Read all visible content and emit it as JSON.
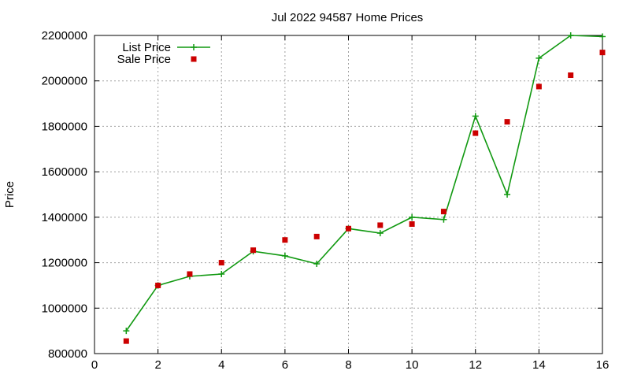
{
  "chart_data": {
    "type": "line",
    "title": "Jul 2022 94587 Home Prices",
    "xlabel": "",
    "ylabel": "Price",
    "xlim": [
      0,
      16
    ],
    "ylim": [
      800000,
      2200000
    ],
    "x_ticks": [
      0,
      2,
      4,
      6,
      8,
      10,
      12,
      14,
      16
    ],
    "y_ticks": [
      800000,
      1000000,
      1200000,
      1400000,
      1600000,
      1800000,
      2000000,
      2200000
    ],
    "grid": true,
    "legend_position": "top-left",
    "series": [
      {
        "name": "List Price",
        "style": "linespoints",
        "marker": "plus",
        "color": "#119911",
        "x": [
          1,
          2,
          3,
          4,
          5,
          6,
          7,
          8,
          9,
          10,
          11,
          12,
          13,
          14,
          15,
          16
        ],
        "y": [
          900000,
          1100000,
          1140000,
          1150000,
          1250000,
          1230000,
          1195000,
          1350000,
          1330000,
          1400000,
          1390000,
          1845000,
          1500000,
          2100000,
          2200000,
          2195000
        ]
      },
      {
        "name": "Sale Price",
        "style": "points",
        "marker": "square",
        "color": "#cc0000",
        "x": [
          1,
          2,
          3,
          4,
          5,
          6,
          7,
          8,
          9,
          10,
          11,
          12,
          13,
          14,
          15,
          16
        ],
        "y": [
          855000,
          1100000,
          1150000,
          1200000,
          1255000,
          1300000,
          1315000,
          1350000,
          1365000,
          1370000,
          1425000,
          1770000,
          1820000,
          1975000,
          2025000,
          2125000
        ]
      }
    ]
  }
}
